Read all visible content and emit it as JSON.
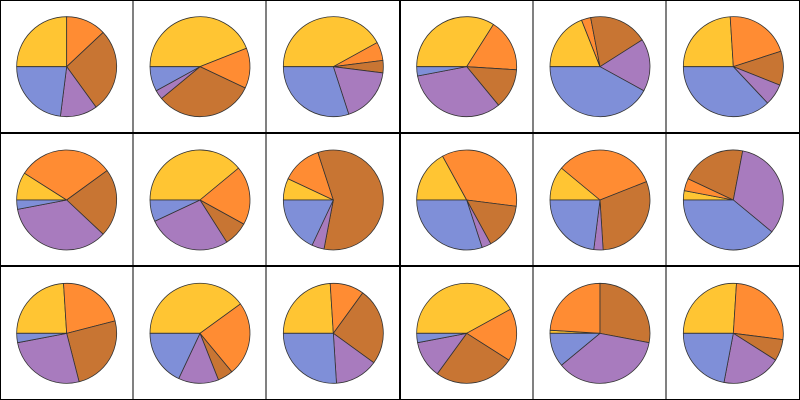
{
  "chart_data": [
    {
      "type": "pie",
      "values": [
        25,
        13,
        27,
        12,
        23
      ],
      "colors": [
        "#ffc533",
        "#ff8c33",
        "#c87533",
        "#a87bbe",
        "#7f8fd8"
      ]
    },
    {
      "type": "pie",
      "values": [
        44,
        13,
        32,
        3,
        8
      ],
      "colors": [
        "#ffc533",
        "#ff8c33",
        "#c87533",
        "#a87bbe",
        "#7f8fd8"
      ]
    },
    {
      "type": "pie",
      "values": [
        42,
        6,
        4,
        18,
        30
      ],
      "colors": [
        "#ffc533",
        "#ff8c33",
        "#c87533",
        "#a87bbe",
        "#7f8fd8"
      ]
    },
    {
      "type": "pie",
      "values": [
        34,
        17,
        13,
        33,
        3
      ],
      "colors": [
        "#ffc533",
        "#ff8c33",
        "#c87533",
        "#a87bbe",
        "#7f8fd8"
      ]
    },
    {
      "type": "pie",
      "values": [
        19,
        3,
        19,
        17,
        42
      ],
      "colors": [
        "#ffc533",
        "#ff8c33",
        "#c87533",
        "#a87bbe",
        "#7f8fd8"
      ]
    },
    {
      "type": "pie",
      "values": [
        24,
        21,
        11,
        7,
        37
      ],
      "colors": [
        "#ffc533",
        "#ff8c33",
        "#c87533",
        "#a87bbe",
        "#7f8fd8"
      ]
    },
    {
      "type": "pie",
      "values": [
        9,
        31,
        22,
        35,
        3
      ],
      "colors": [
        "#ffc533",
        "#ff8c33",
        "#c87533",
        "#a87bbe",
        "#7f8fd8"
      ]
    },
    {
      "type": "pie",
      "values": [
        39,
        19,
        8,
        27,
        7
      ],
      "colors": [
        "#ffc533",
        "#ff8c33",
        "#c87533",
        "#a87bbe",
        "#7f8fd8"
      ]
    },
    {
      "type": "pie",
      "values": [
        7,
        13,
        58,
        4,
        18
      ],
      "colors": [
        "#ffc533",
        "#ff8c33",
        "#c87533",
        "#a87bbe",
        "#7f8fd8"
      ]
    },
    {
      "type": "pie",
      "values": [
        17,
        35,
        15,
        3,
        30
      ],
      "colors": [
        "#ffc533",
        "#ff8c33",
        "#c87533",
        "#a87bbe",
        "#7f8fd8"
      ]
    },
    {
      "type": "pie",
      "values": [
        11,
        33,
        30,
        3,
        23
      ],
      "colors": [
        "#ffc533",
        "#ff8c33",
        "#c87533",
        "#a87bbe",
        "#7f8fd8"
      ]
    },
    {
      "type": "pie",
      "values": [
        3,
        4,
        21,
        33,
        39
      ],
      "colors": [
        "#ffc533",
        "#ff8c33",
        "#c87533",
        "#a87bbe",
        "#7f8fd8"
      ]
    },
    {
      "type": "pie",
      "values": [
        24,
        22,
        25,
        26,
        3
      ],
      "colors": [
        "#ffc533",
        "#ff8c33",
        "#c87533",
        "#a87bbe",
        "#7f8fd8"
      ]
    },
    {
      "type": "pie",
      "values": [
        40,
        24,
        5,
        13,
        18
      ],
      "colors": [
        "#ffc533",
        "#ff8c33",
        "#c87533",
        "#a87bbe",
        "#7f8fd8"
      ]
    },
    {
      "type": "pie",
      "values": [
        24,
        11,
        25,
        14,
        26
      ],
      "colors": [
        "#ffc533",
        "#ff8c33",
        "#c87533",
        "#a87bbe",
        "#7f8fd8"
      ]
    },
    {
      "type": "pie",
      "values": [
        42,
        17,
        26,
        12,
        3
      ],
      "colors": [
        "#ffc533",
        "#ff8c33",
        "#c87533",
        "#a87bbe",
        "#7f8fd8"
      ]
    },
    {
      "type": "pie",
      "values": [
        1,
        24,
        28,
        36,
        11
      ],
      "colors": [
        "#ffc533",
        "#ff8c33",
        "#c87533",
        "#a87bbe",
        "#7f8fd8"
      ]
    },
    {
      "type": "pie",
      "values": [
        26,
        26,
        7,
        19,
        22
      ],
      "colors": [
        "#ffc533",
        "#ff8c33",
        "#c87533",
        "#a87bbe",
        "#7f8fd8"
      ]
    }
  ]
}
